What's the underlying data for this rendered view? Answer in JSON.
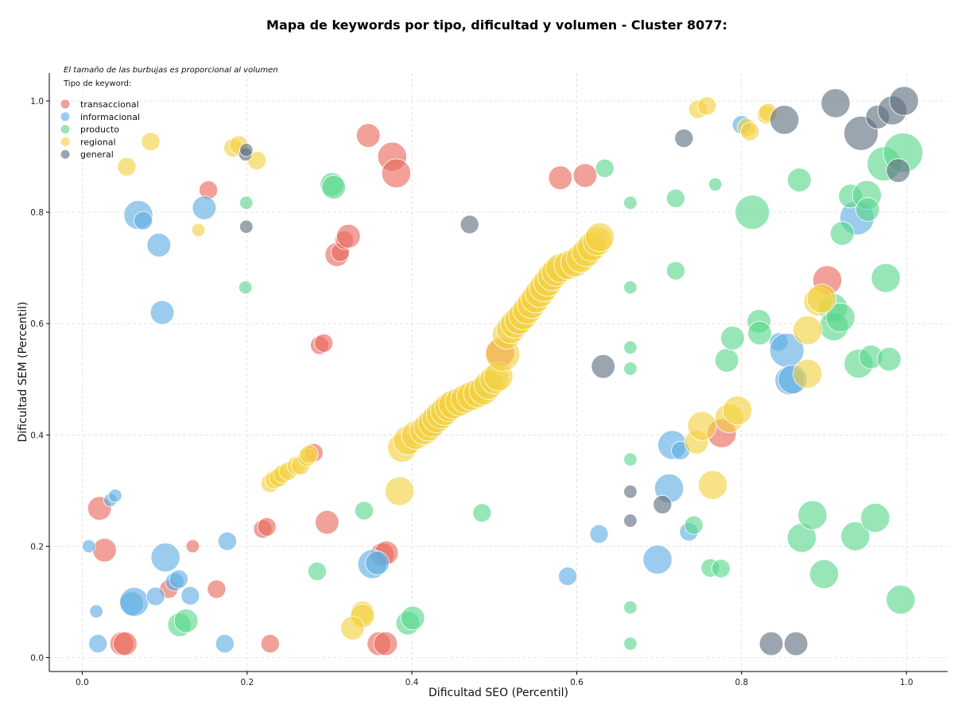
{
  "chart_data": {
    "type": "scatter",
    "title": "Mapa de keywords por tipo, dificultad y volumen - Cluster 8077:",
    "xlabel": "Dificultad SEO (Percentil)",
    "ylabel": "Dificultad SEM (Percentil)",
    "xlim": [
      -0.04,
      1.05
    ],
    "ylim": [
      -0.025,
      1.05
    ],
    "xticks": [
      "0.0",
      "0.2",
      "0.4",
      "0.6",
      "0.8",
      "1.0"
    ],
    "yticks": [
      "0.0",
      "0.2",
      "0.4",
      "0.6",
      "0.8",
      "1.0"
    ],
    "grid": true,
    "note": "El tamaño de las burbujas es proporcional al volumen",
    "legend_title": "Tipo de keyword:",
    "legend_position": "top-left",
    "size_encoding": "volume",
    "series": [
      {
        "name": "transaccional",
        "color": "#e8685a",
        "points": [
          [
            0.021,
            0.268,
            3
          ],
          [
            0.027,
            0.193,
            3
          ],
          [
            0.048,
            0.025,
            3
          ],
          [
            0.052,
            0.025,
            3
          ],
          [
            0.105,
            0.123,
            2
          ],
          [
            0.134,
            0.2,
            1
          ],
          [
            0.153,
            0.84,
            2
          ],
          [
            0.163,
            0.123,
            2
          ],
          [
            0.219,
            0.231,
            2
          ],
          [
            0.224,
            0.235,
            2
          ],
          [
            0.228,
            0.025,
            2
          ],
          [
            0.281,
            0.368,
            2
          ],
          [
            0.288,
            0.561,
            2
          ],
          [
            0.293,
            0.565,
            2
          ],
          [
            0.297,
            0.243,
            3
          ],
          [
            0.309,
            0.724,
            3
          ],
          [
            0.313,
            0.728,
            2
          ],
          [
            0.318,
            0.75,
            2
          ],
          [
            0.323,
            0.757,
            3
          ],
          [
            0.347,
            0.938,
            3
          ],
          [
            0.36,
            0.025,
            3
          ],
          [
            0.364,
            0.185,
            3
          ],
          [
            0.368,
            0.025,
            3
          ],
          [
            0.369,
            0.188,
            3
          ],
          [
            0.376,
            0.9,
            4
          ],
          [
            0.381,
            0.87,
            4
          ],
          [
            0.507,
            0.548,
            4
          ],
          [
            0.58,
            0.862,
            3
          ],
          [
            0.61,
            0.866,
            3
          ],
          [
            0.776,
            0.403,
            4
          ],
          [
            0.904,
            0.678,
            4
          ]
        ]
      },
      {
        "name": "informacional",
        "color": "#5dade2",
        "points": [
          [
            0.008,
            0.2,
            1
          ],
          [
            0.017,
            0.083,
            1
          ],
          [
            0.019,
            0.025,
            2
          ],
          [
            0.034,
            0.283,
            1
          ],
          [
            0.04,
            0.291,
            1
          ],
          [
            0.06,
            0.097,
            3
          ],
          [
            0.063,
            0.1,
            4
          ],
          [
            0.068,
            0.795,
            4
          ],
          [
            0.074,
            0.785,
            2
          ],
          [
            0.089,
            0.11,
            2
          ],
          [
            0.093,
            0.741,
            3
          ],
          [
            0.097,
            0.62,
            3
          ],
          [
            0.101,
            0.18,
            4
          ],
          [
            0.112,
            0.136,
            2
          ],
          [
            0.117,
            0.141,
            2
          ],
          [
            0.131,
            0.111,
            2
          ],
          [
            0.148,
            0.808,
            3
          ],
          [
            0.173,
            0.025,
            2
          ],
          [
            0.176,
            0.209,
            2
          ],
          [
            0.352,
            0.168,
            4
          ],
          [
            0.358,
            0.17,
            3
          ],
          [
            0.589,
            0.146,
            2
          ],
          [
            0.627,
            0.222,
            2
          ],
          [
            0.698,
            0.176,
            4
          ],
          [
            0.712,
            0.304,
            4
          ],
          [
            0.716,
            0.382,
            4
          ],
          [
            0.726,
            0.372,
            2
          ],
          [
            0.736,
            0.226,
            2
          ],
          [
            0.8,
            0.957,
            2
          ],
          [
            0.845,
            0.567,
            2
          ],
          [
            0.855,
            0.552,
            5
          ],
          [
            0.858,
            0.498,
            4
          ],
          [
            0.862,
            0.5,
            4
          ],
          [
            0.94,
            0.79,
            5
          ]
        ]
      },
      {
        "name": "producto",
        "color": "#58d68d",
        "points": [
          [
            0.118,
            0.059,
            3
          ],
          [
            0.126,
            0.066,
            3
          ],
          [
            0.198,
            0.665,
            1
          ],
          [
            0.199,
            0.817,
            1
          ],
          [
            0.285,
            0.155,
            2
          ],
          [
            0.303,
            0.85,
            3
          ],
          [
            0.305,
            0.845,
            3
          ],
          [
            0.342,
            0.264,
            2
          ],
          [
            0.395,
            0.062,
            3
          ],
          [
            0.401,
            0.071,
            3
          ],
          [
            0.485,
            0.26,
            2
          ],
          [
            0.634,
            0.879,
            2
          ],
          [
            0.665,
            0.025,
            1
          ],
          [
            0.665,
            0.09,
            1
          ],
          [
            0.665,
            0.356,
            1
          ],
          [
            0.665,
            0.519,
            1
          ],
          [
            0.665,
            0.557,
            1
          ],
          [
            0.665,
            0.665,
            1
          ],
          [
            0.665,
            0.817,
            1
          ],
          [
            0.72,
            0.825,
            2
          ],
          [
            0.72,
            0.695,
            2
          ],
          [
            0.742,
            0.238,
            2
          ],
          [
            0.762,
            0.161,
            2
          ],
          [
            0.768,
            0.85,
            1
          ],
          [
            0.775,
            0.16,
            2
          ],
          [
            0.782,
            0.534,
            3
          ],
          [
            0.789,
            0.574,
            3
          ],
          [
            0.813,
            0.8,
            5
          ],
          [
            0.821,
            0.604,
            3
          ],
          [
            0.822,
            0.583,
            3
          ],
          [
            0.87,
            0.858,
            3
          ],
          [
            0.873,
            0.215,
            4
          ],
          [
            0.886,
            0.256,
            4
          ],
          [
            0.9,
            0.15,
            4
          ],
          [
            0.911,
            0.628,
            4
          ],
          [
            0.912,
            0.595,
            4
          ],
          [
            0.92,
            0.611,
            4
          ],
          [
            0.922,
            0.762,
            3
          ],
          [
            0.932,
            0.829,
            3
          ],
          [
            0.938,
            0.218,
            4
          ],
          [
            0.942,
            0.528,
            4
          ],
          [
            0.952,
            0.831,
            4
          ],
          [
            0.953,
            0.805,
            3
          ],
          [
            0.957,
            0.54,
            3
          ],
          [
            0.962,
            0.251,
            4
          ],
          [
            0.973,
            0.887,
            5
          ],
          [
            0.975,
            0.682,
            4
          ],
          [
            0.979,
            0.536,
            3
          ],
          [
            0.993,
            0.104,
            4
          ],
          [
            0.996,
            0.907,
            6
          ]
        ]
      },
      {
        "name": "regional",
        "color": "#f4d03f",
        "points": [
          [
            0.054,
            0.882,
            2
          ],
          [
            0.083,
            0.927,
            2
          ],
          [
            0.141,
            0.768,
            1
          ],
          [
            0.183,
            0.916,
            2
          ],
          [
            0.19,
            0.921,
            2
          ],
          [
            0.212,
            0.893,
            2
          ],
          [
            0.228,
            0.313,
            2
          ],
          [
            0.233,
            0.32,
            2
          ],
          [
            0.238,
            0.323,
            2
          ],
          [
            0.243,
            0.33,
            2
          ],
          [
            0.25,
            0.335,
            2
          ],
          [
            0.26,
            0.345,
            2
          ],
          [
            0.265,
            0.345,
            2
          ],
          [
            0.273,
            0.36,
            2
          ],
          [
            0.275,
            0.365,
            2
          ],
          [
            0.34,
            0.08,
            3
          ],
          [
            0.34,
            0.075,
            3
          ],
          [
            0.328,
            0.053,
            3
          ],
          [
            0.385,
            0.299,
            4
          ],
          [
            0.388,
            0.377,
            4
          ],
          [
            0.395,
            0.39,
            4
          ],
          [
            0.405,
            0.4,
            4
          ],
          [
            0.415,
            0.408,
            4
          ],
          [
            0.42,
            0.415,
            4
          ],
          [
            0.425,
            0.422,
            4
          ],
          [
            0.43,
            0.43,
            4
          ],
          [
            0.435,
            0.437,
            4
          ],
          [
            0.44,
            0.443,
            4
          ],
          [
            0.445,
            0.45,
            4
          ],
          [
            0.45,
            0.455,
            4
          ],
          [
            0.458,
            0.46,
            4
          ],
          [
            0.465,
            0.465,
            4
          ],
          [
            0.472,
            0.47,
            4
          ],
          [
            0.48,
            0.475,
            4
          ],
          [
            0.487,
            0.48,
            4
          ],
          [
            0.493,
            0.49,
            4
          ],
          [
            0.5,
            0.5,
            4
          ],
          [
            0.505,
            0.505,
            4
          ],
          [
            0.51,
            0.545,
            5
          ],
          [
            0.515,
            0.58,
            4
          ],
          [
            0.52,
            0.59,
            4
          ],
          [
            0.525,
            0.6,
            4
          ],
          [
            0.53,
            0.607,
            4
          ],
          [
            0.535,
            0.615,
            4
          ],
          [
            0.54,
            0.625,
            4
          ],
          [
            0.545,
            0.635,
            4
          ],
          [
            0.55,
            0.645,
            4
          ],
          [
            0.555,
            0.655,
            4
          ],
          [
            0.56,
            0.665,
            4
          ],
          [
            0.565,
            0.675,
            4
          ],
          [
            0.57,
            0.685,
            4
          ],
          [
            0.575,
            0.693,
            4
          ],
          [
            0.58,
            0.7,
            4
          ],
          [
            0.59,
            0.705,
            4
          ],
          [
            0.598,
            0.71,
            4
          ],
          [
            0.605,
            0.718,
            4
          ],
          [
            0.612,
            0.728,
            4
          ],
          [
            0.618,
            0.738,
            4
          ],
          [
            0.625,
            0.748,
            4
          ],
          [
            0.628,
            0.755,
            4
          ],
          [
            0.745,
            0.387,
            3
          ],
          [
            0.752,
            0.416,
            4
          ],
          [
            0.765,
            0.31,
            4
          ],
          [
            0.785,
            0.43,
            4
          ],
          [
            0.795,
            0.444,
            4
          ],
          [
            0.747,
            0.985,
            2
          ],
          [
            0.758,
            0.991,
            2
          ],
          [
            0.806,
            0.952,
            2
          ],
          [
            0.81,
            0.945,
            2
          ],
          [
            0.83,
            0.975,
            2
          ],
          [
            0.832,
            0.979,
            2
          ],
          [
            0.88,
            0.588,
            4
          ],
          [
            0.88,
            0.51,
            4
          ],
          [
            0.893,
            0.64,
            4
          ],
          [
            0.897,
            0.645,
            4
          ]
        ]
      },
      {
        "name": "general",
        "color": "#5d6d7e",
        "points": [
          [
            0.198,
            0.904,
            1
          ],
          [
            0.199,
            0.912,
            1
          ],
          [
            0.199,
            0.774,
            1
          ],
          [
            0.47,
            0.778,
            2
          ],
          [
            0.632,
            0.523,
            3
          ],
          [
            0.665,
            0.246,
            1
          ],
          [
            0.665,
            0.298,
            1
          ],
          [
            0.704,
            0.275,
            2
          ],
          [
            0.73,
            0.933,
            2
          ],
          [
            0.836,
            0.025,
            3
          ],
          [
            0.852,
            0.966,
            4
          ],
          [
            0.866,
            0.025,
            3
          ],
          [
            0.914,
            0.996,
            4
          ],
          [
            0.945,
            0.942,
            5
          ],
          [
            0.965,
            0.971,
            3
          ],
          [
            0.983,
            0.983,
            4
          ],
          [
            0.99,
            0.875,
            3
          ],
          [
            0.997,
            1.0,
            4
          ]
        ]
      }
    ]
  }
}
